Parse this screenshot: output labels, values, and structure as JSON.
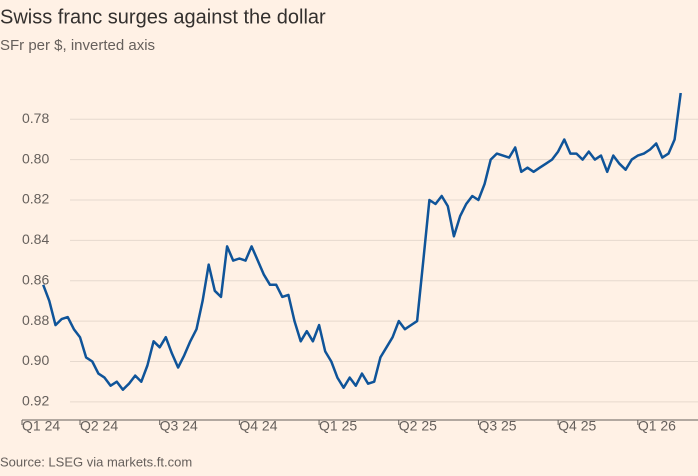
{
  "chart_data": {
    "type": "line",
    "title": "Swiss franc surges against the dollar",
    "subtitle": "SFr per $, inverted axis",
    "source": "Source: LSEG via markets.ft.com",
    "inverted": true,
    "grid": true,
    "ylim": [
      0.765,
      0.929
    ],
    "yticks": [
      0.78,
      {
        "value": 0.8,
        "label": "0.80"
      },
      0.82,
      0.84,
      0.86,
      0.88,
      {
        "value": 0.9,
        "label": "0.90"
      },
      0.92
    ],
    "categories": [
      "Q1 24",
      null,
      null,
      null,
      null,
      null,
      null,
      null,
      null,
      null,
      null,
      null,
      null,
      "Q2 24",
      null,
      null,
      null,
      null,
      null,
      null,
      null,
      null,
      null,
      null,
      null,
      null,
      "Q3 24",
      null,
      null,
      null,
      null,
      null,
      null,
      null,
      null,
      null,
      null,
      null,
      null,
      "Q4 24",
      null,
      null,
      null,
      null,
      null,
      null,
      null,
      null,
      null,
      null,
      null,
      null,
      "Q1 25",
      null,
      null,
      null,
      null,
      null,
      null,
      null,
      null,
      null,
      null,
      null,
      null,
      "Q2 25",
      null,
      null,
      null,
      null,
      null,
      null,
      null,
      null,
      null,
      null,
      null,
      null,
      "Q3 25",
      null,
      null,
      null,
      null,
      null,
      null,
      null,
      null,
      null,
      null,
      null,
      null,
      "Q4 25",
      null,
      null,
      null,
      null,
      null,
      null,
      null,
      null,
      null,
      null,
      null,
      null,
      "Q1 26",
      null,
      null,
      null,
      null,
      null,
      null,
      null
    ],
    "series": [
      {
        "color": "#0f5499",
        "values": [
          null,
          null,
          null,
          null,
          null,
          null,
          null,
          0.862,
          0.87,
          0.882,
          0.879,
          0.878,
          0.884,
          0.888,
          0.898,
          0.9,
          0.906,
          0.908,
          0.912,
          0.91,
          0.914,
          0.911,
          0.907,
          0.91,
          0.902,
          0.89,
          0.893,
          0.888,
          0.896,
          0.903,
          0.897,
          0.89,
          0.884,
          0.87,
          0.852,
          0.865,
          0.868,
          0.843,
          0.85,
          0.849,
          0.85,
          0.843,
          0.85,
          0.857,
          0.862,
          0.862,
          0.868,
          0.867,
          0.88,
          0.89,
          0.885,
          0.89,
          0.882,
          0.895,
          0.9,
          0.908,
          0.913,
          0.908,
          0.912,
          0.906,
          0.911,
          0.91,
          0.898,
          0.893,
          0.888,
          0.88,
          0.884,
          0.882,
          0.88,
          0.85,
          0.82,
          0.822,
          0.818,
          0.823,
          0.838,
          0.828,
          0.822,
          0.818,
          0.82,
          0.812,
          0.8,
          0.797,
          0.798,
          0.799,
          0.794,
          0.806,
          0.804,
          0.806,
          0.804,
          0.802,
          0.8,
          0.796,
          0.79,
          0.797,
          0.797,
          0.8,
          0.796,
          0.8,
          0.798,
          0.806,
          0.798,
          0.802,
          0.805,
          0.8,
          0.798,
          0.797,
          0.795,
          0.792,
          0.799,
          0.797,
          0.79,
          0.767
        ]
      }
    ]
  }
}
